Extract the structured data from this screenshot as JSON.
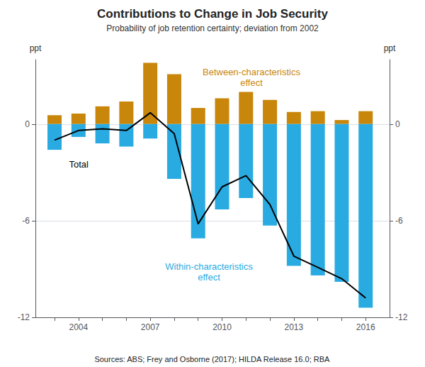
{
  "chart_data": {
    "type": "bar",
    "title": "Contributions to Change in Job Security",
    "subtitle": "Probability of job retention certainty; deviation from 2002",
    "source": "Sources: ABS; Frey and Osborne (2017); HILDA Release 16.0; RBA",
    "x": [
      2003,
      2004,
      2005,
      2006,
      2007,
      2008,
      2009,
      2010,
      2011,
      2012,
      2013,
      2014,
      2015,
      2016
    ],
    "series": [
      {
        "name": "Between-characteristics\neffect",
        "type": "bar",
        "color": "#C8860A",
        "values": [
          0.55,
          0.65,
          1.1,
          1.4,
          3.8,
          3.1,
          1.0,
          1.6,
          2.0,
          1.5,
          0.75,
          0.8,
          0.25,
          0.8
        ]
      },
      {
        "name": "Within-characteristics\neffect",
        "type": "bar",
        "color": "#29ABE2",
        "values": [
          -1.6,
          -0.8,
          -1.2,
          -1.4,
          -0.9,
          -3.4,
          -7.1,
          -5.3,
          -4.6,
          -6.3,
          -8.8,
          -9.4,
          -9.8,
          -11.4
        ]
      },
      {
        "name": "Total",
        "type": "line",
        "color": "#000000",
        "values": [
          -1.0,
          -0.4,
          -0.3,
          -0.4,
          0.7,
          -0.6,
          -6.2,
          -3.9,
          -3.2,
          -5.0,
          -8.2,
          -8.9,
          -9.6,
          -10.8
        ]
      }
    ],
    "xlim": [
      2002.2,
      2017.0
    ],
    "xticks": [
      2004,
      2007,
      2010,
      2013,
      2016
    ],
    "ylim": [
      -12,
      4
    ],
    "yticks": [
      -12,
      -6,
      0
    ],
    "y2lim": [
      -12,
      4
    ],
    "y2ticks": [
      -12,
      -6,
      0
    ],
    "ylabel": "ppt",
    "y2label": "ppt",
    "grid": true
  }
}
